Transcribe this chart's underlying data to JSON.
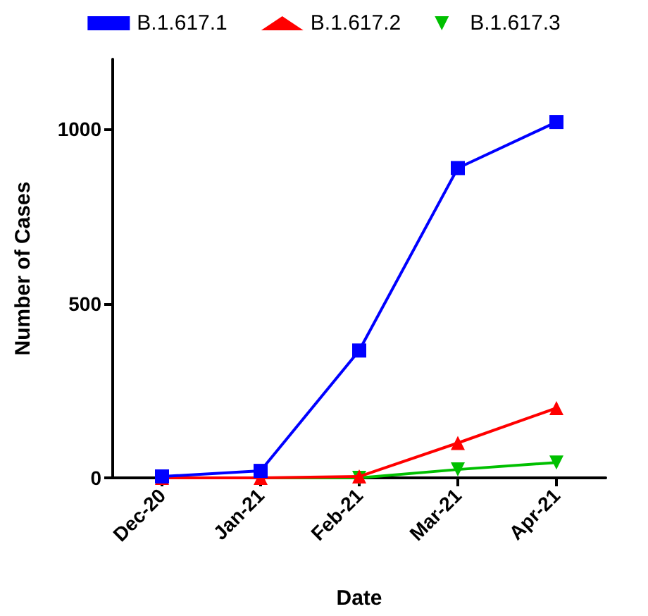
{
  "chart_data": {
    "type": "line",
    "xlabel": "Date",
    "ylabel": "Number of Cases",
    "categories": [
      "Dec-20",
      "Jan-21",
      "Feb-21",
      "Mar-21",
      "Apr-21"
    ],
    "series": [
      {
        "name": "B.1.617.1",
        "color": "#0000ff",
        "marker": "square",
        "values": [
          4,
          20,
          365,
          888,
          1020
        ]
      },
      {
        "name": "B.1.617.2",
        "color": "#ff0000",
        "marker": "triangle",
        "values": [
          0,
          0,
          4,
          100,
          200
        ]
      },
      {
        "name": "B.1.617.3",
        "color": "#00c000",
        "marker": "triangle-down",
        "values": [
          0,
          0,
          0,
          24,
          44
        ]
      }
    ],
    "ylim": [
      0,
      1200
    ],
    "yticks": [
      0,
      500,
      1000
    ],
    "grid": false,
    "legend": "top",
    "line_style": "solid"
  }
}
